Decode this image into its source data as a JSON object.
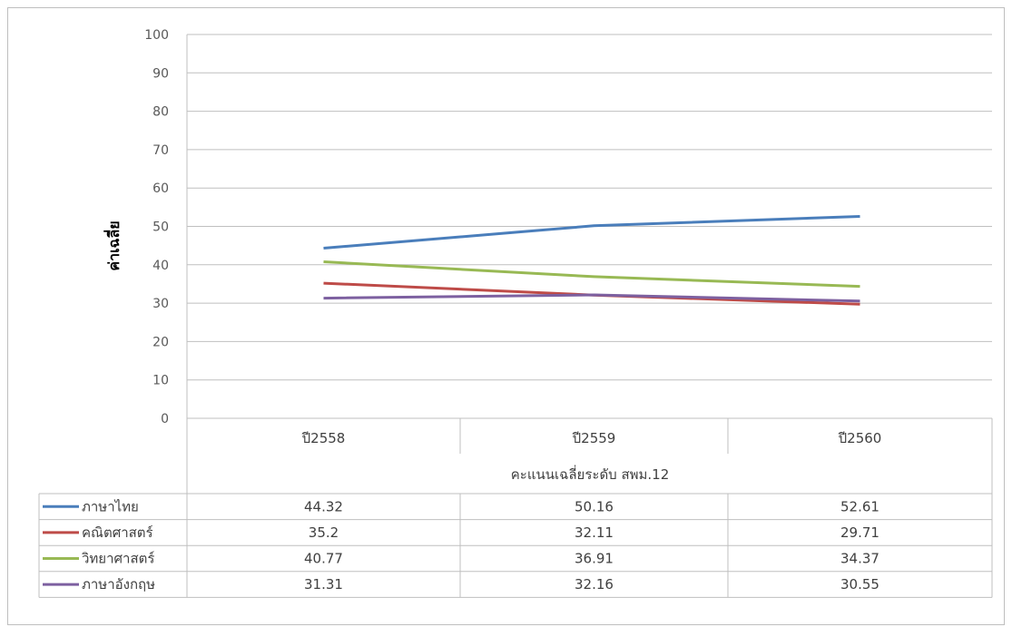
{
  "chart_data": {
    "type": "line",
    "title": "",
    "ylabel": "ค่าเฉลี่ย",
    "xlabel": "คะแนนเฉลี่ยระดับ สพม.12",
    "ylim": [
      0,
      100
    ],
    "yticks": [
      0,
      10,
      20,
      30,
      40,
      50,
      60,
      70,
      80,
      90,
      100
    ],
    "categories": [
      "ปี2558",
      "ปี2559",
      "ปี2560"
    ],
    "grid": true,
    "legend": "data-table",
    "series": [
      {
        "name": "ภาษาไทย",
        "color": "#4a7ebb",
        "values": [
          44.32,
          50.16,
          52.61
        ],
        "labels": [
          "44.32",
          "50.16",
          "52.61"
        ]
      },
      {
        "name": "คณิตศาสตร์",
        "color": "#be4b48",
        "values": [
          35.2,
          32.11,
          29.71
        ],
        "labels": [
          "35.2",
          "32.11",
          "29.71"
        ]
      },
      {
        "name": "วิทยาศาสตร์",
        "color": "#98b954",
        "values": [
          40.77,
          36.91,
          34.37
        ],
        "labels": [
          "40.77",
          "36.91",
          "34.37"
        ]
      },
      {
        "name": "ภาษาอังกฤษ",
        "color": "#7d60a0",
        "values": [
          31.31,
          32.16,
          30.55
        ],
        "labels": [
          "31.31",
          "32.16",
          "30.55"
        ]
      }
    ]
  }
}
